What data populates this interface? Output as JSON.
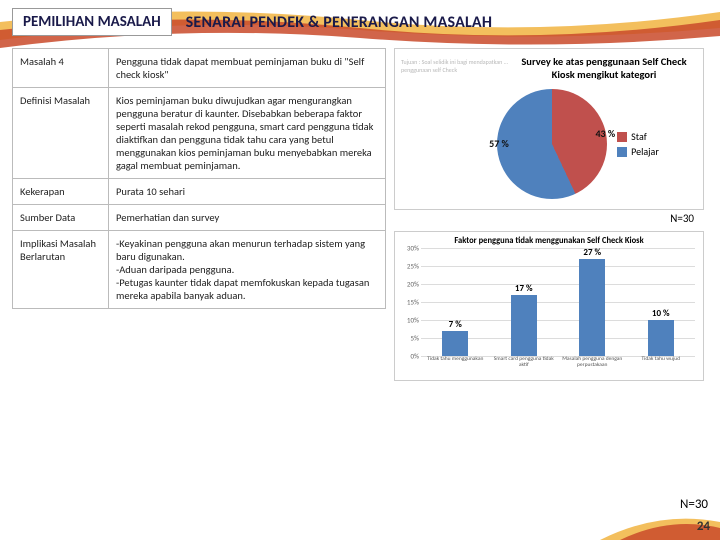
{
  "header": {
    "tab_label": "PEMILIHAN MASALAH",
    "title": "SENARAI PENDEK & PENERANGAN MASALAH"
  },
  "table": {
    "rows": [
      {
        "k": "Masalah 4",
        "v": "Pengguna tidak dapat membuat peminjaman buku di \"Self check kiosk\""
      },
      {
        "k": "Definisi Masalah",
        "v": "Kios peminjaman buku diwujudkan agar mengurangkan pengguna beratur di kaunter. Disebabkan beberapa faktor seperti masalah rekod pengguna, smart card pengguna tidak diaktifkan dan pengguna tidak tahu cara yang betul menggunakan kios peminjaman buku menyebabkan mereka gagal membuat peminjaman."
      },
      {
        "k": "Kekerapan",
        "v": "Purata 10 sehari"
      },
      {
        "k": "Sumber Data",
        "v": "Pemerhatian dan survey"
      },
      {
        "k": "Implikasi Masalah Berlarutan",
        "v": "-Keyakinan pengguna akan menurun terhadap sistem yang baru digunakan.\n-Aduan daripada pengguna.\n-Petugas kaunter tidak dapat memfokuskan kepada tugasan mereka apabila banyak aduan."
      }
    ]
  },
  "pie_chart": {
    "type": "pie",
    "title": "Survey ke atas penggunaan Self Check Kiosk mengikut kategori",
    "slices": [
      {
        "label": "Staf",
        "value": 43,
        "color": "#c0504d",
        "display": "43 %"
      },
      {
        "label": "Pelajar",
        "value": 57,
        "color": "#4f81bd",
        "display": "57 %"
      }
    ],
    "legend_colors": {
      "Staf": "#c0504d",
      "Pelajar": "#4f81bd"
    },
    "n_label": "N=30",
    "faint_text": "Tujuan : Soal selidik ini bagi mendapatkan ... penggunaan self Check"
  },
  "bar_chart": {
    "type": "bar",
    "title": "Faktor pengguna tidak menggunakan Self Check Kiosk",
    "ylim": [
      0,
      30
    ],
    "ytick_step": 5,
    "grid_color": "#dcdcdc",
    "bar_color": "#4f81bd",
    "bars": [
      {
        "label": "Tidak tahu menggunakan",
        "value": 7,
        "display": "7 %"
      },
      {
        "label": "Smart card pengguna tidak aktif",
        "value": 17,
        "display": "17 %"
      },
      {
        "label": "Masalah pengguna dengan perpustakaan",
        "value": 27,
        "display": "27 %"
      },
      {
        "label": "Tidak tahu wujud",
        "value": 10,
        "display": "10 %"
      }
    ],
    "n_label": "N=30"
  },
  "page_number": "24",
  "style": {
    "swoosh_main": "#c94a2a",
    "swoosh_accent": "#f2b84b"
  }
}
